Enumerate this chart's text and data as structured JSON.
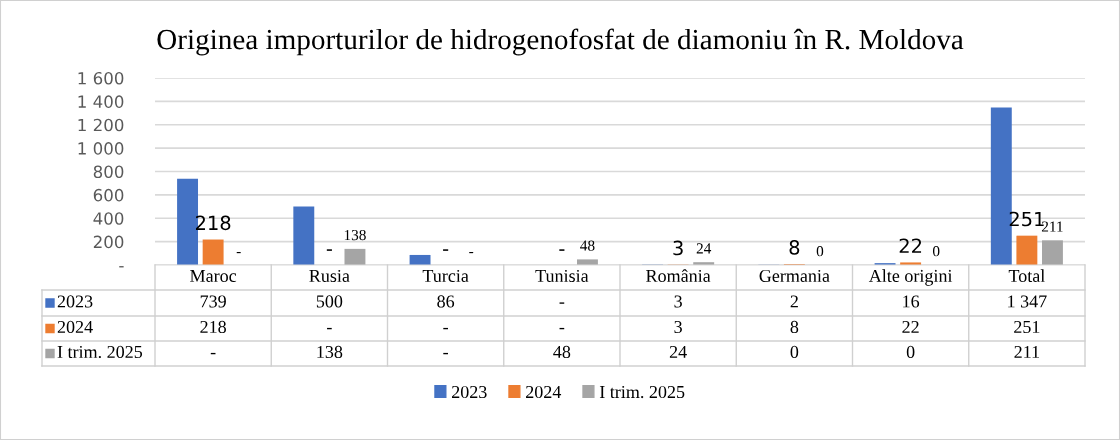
{
  "chart_data": {
    "type": "bar",
    "title": "Originea importurilor de hidrogenofosfat de diamoniu în R. Moldova",
    "categories": [
      "Maroc",
      "Rusia",
      "Turcia",
      "Tunisia",
      "România",
      "Germania",
      "Alte origini",
      "Total"
    ],
    "series": [
      {
        "name": "2023",
        "color": "#4472c4",
        "values": [
          739,
          500,
          86,
          0,
          3,
          2,
          16,
          1347
        ],
        "value_labels": [
          "739",
          "500",
          "86",
          "-",
          "3",
          "2",
          "16",
          "1 347"
        ],
        "data_labels": false
      },
      {
        "name": "2024",
        "color": "#ed7d31",
        "values": [
          218,
          0,
          0,
          0,
          3,
          8,
          22,
          251
        ],
        "value_labels": [
          "218",
          "-",
          "-",
          "-",
          "3",
          "8",
          "22",
          "251"
        ],
        "data_labels": true
      },
      {
        "name": "I trim. 2025",
        "color": "#a5a5a5",
        "values": [
          0,
          138,
          0,
          48,
          24,
          0,
          0,
          211
        ],
        "value_labels": [
          "-",
          "138",
          "-",
          "48",
          "24",
          "0",
          "0",
          "211"
        ],
        "data_labels": true
      }
    ],
    "ylim": [
      0,
      1600
    ],
    "yticks": [
      {
        "value": 0,
        "label": "-"
      },
      {
        "value": 200,
        "label": "200"
      },
      {
        "value": 400,
        "label": "400"
      },
      {
        "value": 600,
        "label": "600"
      },
      {
        "value": 800,
        "label": "800"
      },
      {
        "value": 1000,
        "label": "1 000"
      },
      {
        "value": 1200,
        "label": "1 200"
      },
      {
        "value": 1400,
        "label": "1 400"
      },
      {
        "value": 1600,
        "label": "1 600"
      }
    ],
    "grid": "y",
    "legend": "bottom"
  }
}
